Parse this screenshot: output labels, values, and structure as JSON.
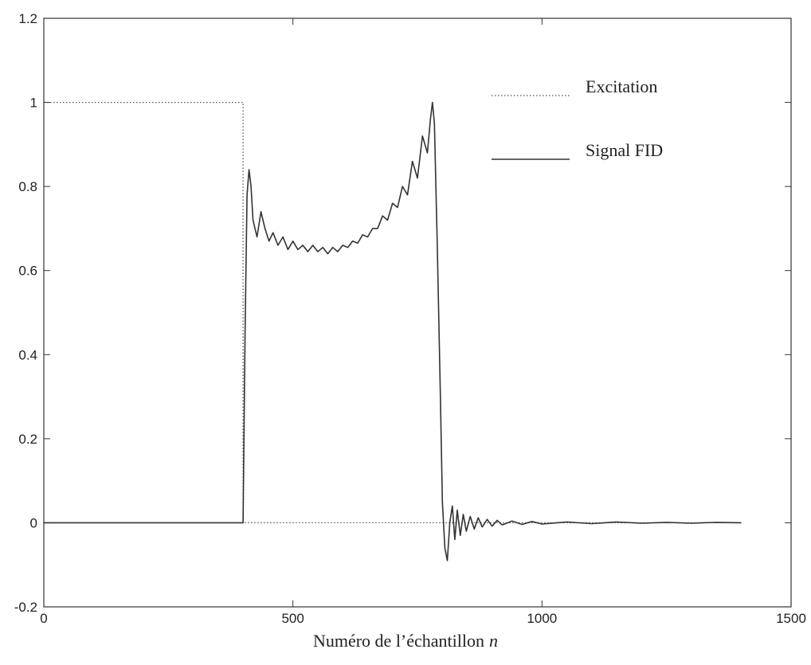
{
  "chart_data": {
    "type": "line",
    "title": "",
    "xlabel": "Numéro de l’échantillon",
    "xlabel_var": "n",
    "ylabel": "",
    "xlim": [
      0,
      1500
    ],
    "ylim": [
      -0.2,
      1.2
    ],
    "xticks": [
      0,
      500,
      1000,
      1500
    ],
    "yticks": [
      -0.2,
      0,
      0.2,
      0.4,
      0.6,
      0.8,
      1,
      1.2
    ],
    "xtick_labels": [
      "0",
      "500",
      "1000",
      "1500"
    ],
    "ytick_labels": [
      "-0.2",
      "0",
      "0.2",
      "0.4",
      "0.6",
      "0.8",
      "1",
      "1.2"
    ],
    "grid": false,
    "legend_position": "top-right",
    "series": [
      {
        "name": "Excitation",
        "style": "dotted",
        "color": "#555555",
        "x": [
          0,
          400,
          400,
          1400
        ],
        "y": [
          1,
          1,
          0,
          0
        ]
      },
      {
        "name": "Signal FID",
        "style": "solid",
        "color": "#333333",
        "x": [
          0,
          400,
          404,
          408,
          412,
          416,
          420,
          428,
          436,
          444,
          452,
          460,
          470,
          480,
          490,
          500,
          510,
          520,
          530,
          540,
          550,
          560,
          570,
          580,
          590,
          600,
          610,
          620,
          630,
          640,
          650,
          660,
          670,
          680,
          690,
          700,
          710,
          720,
          730,
          740,
          750,
          760,
          770,
          776,
          780,
          784,
          790,
          796,
          800,
          805,
          810,
          815,
          820,
          825,
          830,
          836,
          842,
          848,
          856,
          864,
          872,
          880,
          890,
          900,
          910,
          920,
          940,
          960,
          980,
          1000,
          1050,
          1100,
          1150,
          1200,
          1250,
          1300,
          1350,
          1400
        ],
        "y": [
          0,
          0,
          0.45,
          0.78,
          0.84,
          0.8,
          0.72,
          0.68,
          0.74,
          0.7,
          0.67,
          0.69,
          0.66,
          0.68,
          0.65,
          0.67,
          0.65,
          0.66,
          0.645,
          0.66,
          0.645,
          0.655,
          0.64,
          0.655,
          0.645,
          0.66,
          0.655,
          0.67,
          0.665,
          0.685,
          0.68,
          0.7,
          0.7,
          0.73,
          0.72,
          0.76,
          0.75,
          0.8,
          0.78,
          0.86,
          0.82,
          0.92,
          0.88,
          0.96,
          1.0,
          0.95,
          0.65,
          0.3,
          0.05,
          -0.06,
          -0.09,
          0.0,
          0.04,
          -0.04,
          0.03,
          -0.03,
          0.02,
          -0.02,
          0.015,
          -0.015,
          0.012,
          -0.01,
          0.008,
          -0.008,
          0.006,
          -0.005,
          0.004,
          -0.004,
          0.003,
          -0.003,
          0.002,
          -0.002,
          0.002,
          -0.001,
          0.001,
          -0.001,
          0.001,
          0
        ]
      }
    ]
  }
}
